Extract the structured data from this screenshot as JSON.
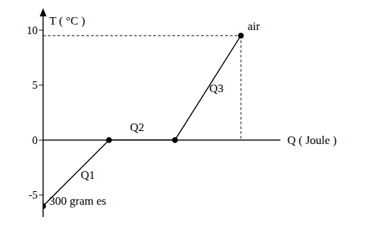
{
  "chart_data": {
    "type": "line",
    "x_label": "Q ( Joule )",
    "y_label": "T ( °C )",
    "x": [
      0,
      1,
      2,
      3
    ],
    "values": [
      -6,
      0,
      0,
      9.5
    ],
    "xlim": [
      0,
      3.6
    ],
    "ylim": [
      -7,
      11.5
    ],
    "yticks": [
      -5,
      0,
      5,
      10
    ],
    "tick_labels": "y",
    "grid": false,
    "color": "#000000",
    "marker": "circle",
    "annotations": [
      "300 gram es",
      "air",
      "Q1",
      "Q2",
      "Q3"
    ]
  }
}
